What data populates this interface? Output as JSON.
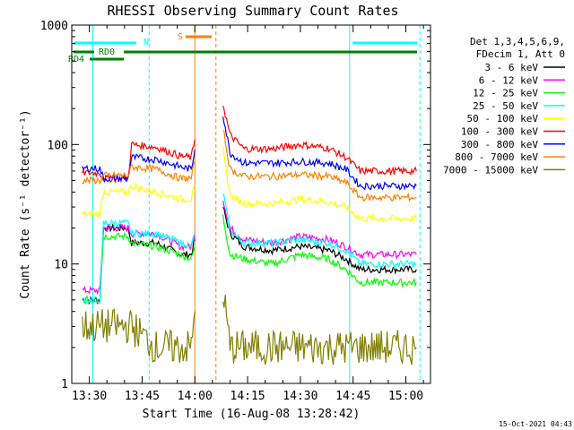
{
  "chart_data": {
    "type": "line",
    "title": "RHESSI Observing Summary Count Rates",
    "xlabel": "Start Time (16-Aug-08 13:28:42)",
    "ylabel": "Count Rate (s⁻¹ detector⁻¹)",
    "yscale": "log",
    "ylim": [
      1,
      1000
    ],
    "xlim": [
      "13:25",
      "15:07"
    ],
    "x_ticks": [
      "13:30",
      "13:45",
      "14:00",
      "14:15",
      "14:30",
      "14:45",
      "15:00"
    ],
    "y_ticks": [
      "1",
      "10",
      "100",
      "1000"
    ],
    "footer": "15-Oct-2021 04:43",
    "legend": {
      "placement": "right",
      "header1": "Det 1,3,4,5,6,9,",
      "header2": "FDecim 1, Att 0"
    },
    "flags": [
      {
        "label": "N",
        "color": "#00ffff"
      },
      {
        "label": "S",
        "color": "#ff8000"
      },
      {
        "label": "RD0",
        "color": "#008000"
      },
      {
        "label": "RD4",
        "color": "#008000"
      }
    ],
    "series": [
      {
        "name": "3 - 6 keV",
        "color": "#000000",
        "x": [
          "13:28",
          "13:33",
          "13:34",
          "13:38",
          "13:41",
          "13:42",
          "13:49",
          "13:56",
          "13:59",
          "14:00",
          "14:06",
          "14:08",
          "14:10",
          "14:14",
          "14:22",
          "14:30",
          "14:38",
          "14:43",
          "14:47",
          "14:50",
          "15:03"
        ],
        "y": [
          5,
          5,
          20,
          20,
          20,
          15,
          15,
          12,
          12,
          16,
          null,
          30,
          18,
          14,
          13,
          14,
          13,
          11,
          9,
          9,
          9
        ]
      },
      {
        "name": "6 - 12 keV",
        "color": "#ff00ff",
        "x": [
          "13:28",
          "13:33",
          "13:34",
          "13:38",
          "13:41",
          "13:42",
          "13:49",
          "13:56",
          "13:59",
          "14:00",
          "14:06",
          "14:08",
          "14:10",
          "14:14",
          "14:22",
          "14:30",
          "14:38",
          "14:43",
          "14:47",
          "14:50",
          "15:03"
        ],
        "y": [
          6,
          6,
          20,
          20,
          20,
          18,
          18,
          14,
          14,
          18,
          null,
          35,
          20,
          16,
          15,
          17,
          16,
          14,
          12,
          12,
          12
        ]
      },
      {
        "name": "12 - 25 keV",
        "color": "#00ff00",
        "x": [
          "13:28",
          "13:33",
          "13:34",
          "13:38",
          "13:41",
          "13:42",
          "13:49",
          "13:56",
          "13:59",
          "14:00",
          "14:06",
          "14:08",
          "14:10",
          "14:14",
          "14:22",
          "14:30",
          "14:38",
          "14:43",
          "14:47",
          "14:50",
          "15:03"
        ],
        "y": [
          5,
          5,
          17,
          17,
          17,
          15,
          14,
          12,
          11,
          14,
          null,
          25,
          12,
          11,
          10,
          12,
          11,
          9,
          7,
          7,
          7
        ]
      },
      {
        "name": "25 - 50 keV",
        "color": "#00ffff",
        "x": [
          "13:28",
          "13:33",
          "13:34",
          "13:38",
          "13:41",
          "13:42",
          "13:49",
          "13:56",
          "13:59",
          "14:00",
          "14:06",
          "14:08",
          "14:10",
          "14:14",
          "14:22",
          "14:30",
          "14:38",
          "14:43",
          "14:47",
          "14:50",
          "15:03"
        ],
        "y": [
          5,
          5,
          22,
          22,
          22,
          18,
          18,
          15,
          14,
          18,
          null,
          40,
          19,
          15,
          15,
          16,
          15,
          13,
          10,
          10,
          10
        ]
      },
      {
        "name": "50 - 100 keV",
        "color": "#ffff00",
        "x": [
          "13:28",
          "13:33",
          "13:34",
          "13:38",
          "13:41",
          "13:42",
          "13:49",
          "13:56",
          "13:59",
          "14:00",
          "14:06",
          "14:08",
          "14:10",
          "14:14",
          "14:22",
          "14:30",
          "14:38",
          "14:43",
          "14:47",
          "14:50",
          "15:03"
        ],
        "y": [
          26,
          26,
          40,
          40,
          40,
          45,
          40,
          35,
          35,
          45,
          null,
          90,
          38,
          32,
          32,
          35,
          33,
          30,
          24,
          24,
          24
        ]
      },
      {
        "name": "100 - 300 keV",
        "color": "#ff0000",
        "x": [
          "13:28",
          "13:33",
          "13:34",
          "13:38",
          "13:41",
          "13:42",
          "13:49",
          "13:56",
          "13:59",
          "14:00",
          "14:06",
          "14:08",
          "14:10",
          "14:14",
          "14:22",
          "14:30",
          "14:38",
          "14:43",
          "14:47",
          "14:50",
          "15:03"
        ],
        "y": [
          58,
          58,
          52,
          52,
          52,
          100,
          95,
          80,
          78,
          110,
          null,
          220,
          120,
          92,
          92,
          100,
          93,
          78,
          60,
          60,
          60
        ]
      },
      {
        "name": "300 - 800 keV",
        "color": "#0000ff",
        "x": [
          "13:28",
          "13:33",
          "13:34",
          "13:38",
          "13:41",
          "13:42",
          "13:49",
          "13:56",
          "13:59",
          "14:00",
          "14:06",
          "14:08",
          "14:10",
          "14:14",
          "14:22",
          "14:30",
          "14:38",
          "14:43",
          "14:47",
          "14:50",
          "15:03"
        ],
        "y": [
          63,
          63,
          52,
          52,
          52,
          78,
          75,
          65,
          62,
          90,
          null,
          180,
          85,
          70,
          70,
          72,
          70,
          62,
          45,
          45,
          45
        ]
      },
      {
        "name": "800 - 7000 keV",
        "color": "#ff8000",
        "x": [
          "13:28",
          "13:33",
          "13:34",
          "13:38",
          "13:41",
          "13:42",
          "13:49",
          "13:56",
          "13:59",
          "14:00",
          "14:06",
          "14:08",
          "14:10",
          "14:14",
          "14:22",
          "14:30",
          "14:38",
          "14:43",
          "14:47",
          "14:50",
          "15:03"
        ],
        "y": [
          50,
          50,
          55,
          55,
          55,
          65,
          62,
          52,
          52,
          72,
          null,
          140,
          62,
          54,
          54,
          56,
          54,
          48,
          36,
          36,
          36
        ]
      },
      {
        "name": "7000 - 15000 keV",
        "color": "#808000",
        "x": [
          "13:28",
          "13:33",
          "13:34",
          "13:38",
          "13:41",
          "13:42",
          "13:49",
          "13:56",
          "13:59",
          "14:00",
          "14:06",
          "14:08",
          "14:10",
          "14:14",
          "14:22",
          "14:30",
          "14:38",
          "14:43",
          "14:47",
          "14:50",
          "15:03"
        ],
        "y": [
          3,
          3,
          3,
          3,
          3,
          3,
          2,
          2,
          2,
          4,
          null,
          6,
          2,
          2,
          2,
          2,
          2,
          2,
          2,
          2,
          2
        ]
      }
    ]
  }
}
